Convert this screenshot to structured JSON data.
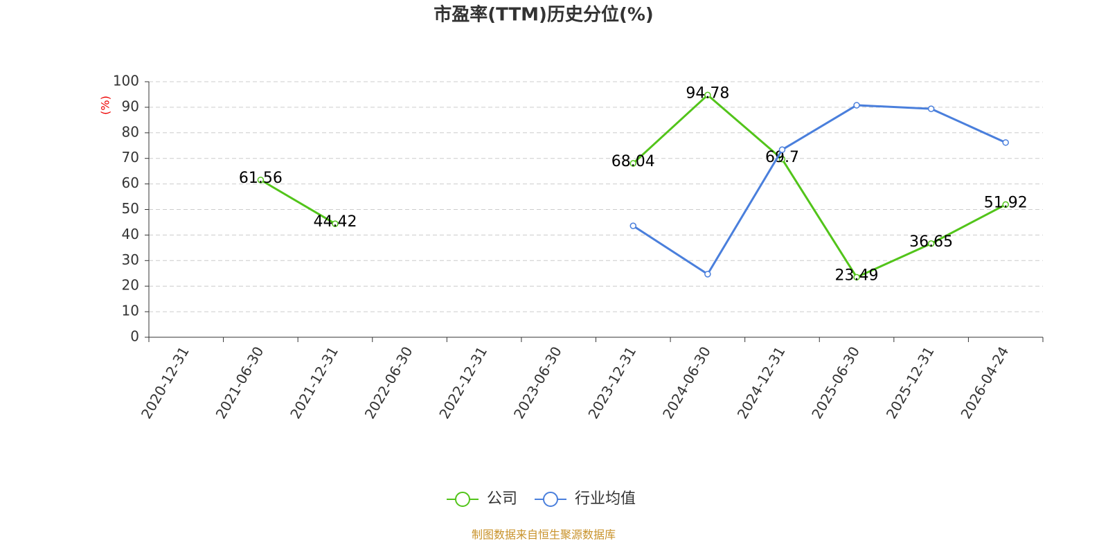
{
  "chart_data": {
    "type": "line",
    "title": "市盈率(TTM)历史分位(%)",
    "y_label": "(%)",
    "categories": [
      "2020-12-31",
      "2021-06-30",
      "2021-12-31",
      "2022-06-30",
      "2022-12-31",
      "2023-06-30",
      "2023-12-31",
      "2024-06-30",
      "2024-12-31",
      "2025-06-30",
      "2025-12-31",
      "2026-04-24"
    ],
    "series": [
      {
        "name": "公司",
        "color": "#52c41a",
        "labels": true,
        "values": [
          null,
          61.56,
          44.42,
          null,
          null,
          null,
          68.04,
          94.78,
          69.7,
          23.49,
          36.65,
          51.92
        ]
      },
      {
        "name": "行业均值",
        "color": "#4a7fdc",
        "labels": false,
        "values": [
          null,
          null,
          null,
          null,
          null,
          null,
          43.6,
          24.7,
          73.4,
          90.8,
          89.4,
          76.2
        ]
      }
    ],
    "ylim": [
      0,
      100
    ],
    "yticks": [
      0,
      10,
      20,
      30,
      40,
      50,
      60,
      70,
      80,
      90,
      100
    ],
    "grid": true,
    "source": "制图数据来自恒生聚源数据库"
  }
}
